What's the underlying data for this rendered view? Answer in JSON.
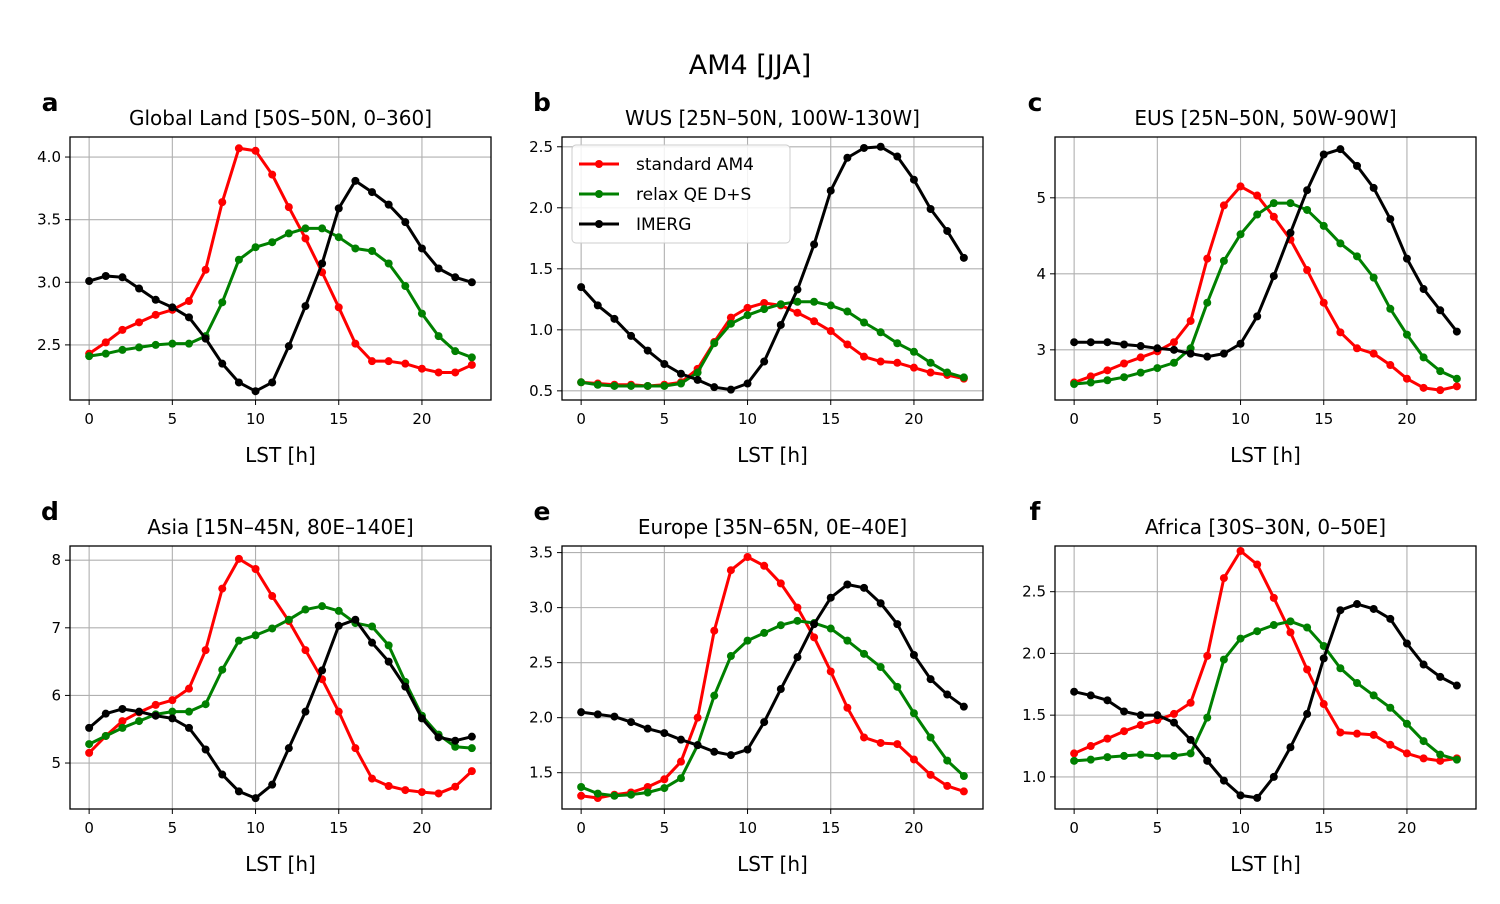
{
  "figure_title": "AM4 [JJA]",
  "colors": {
    "standard AM4": "#ff0000",
    "relax QE D+S": "#008000",
    "IMERG": "#000000"
  },
  "chart_data": [
    {
      "panel": "a",
      "type": "line",
      "title": "Global Land [50S–50N, 0–360]",
      "xlabel": "LST [h]",
      "ylabel": "",
      "grid": true,
      "xlim": [
        -1.15,
        24.15
      ],
      "ylim": [
        2.06,
        4.16
      ],
      "xticks": [
        0,
        5,
        10,
        15,
        20
      ],
      "yticks": [
        "2.5",
        "3.0",
        "3.5",
        "4.0"
      ],
      "x": [
        0,
        1,
        2,
        3,
        4,
        5,
        6,
        7,
        8,
        9,
        10,
        11,
        12,
        13,
        14,
        15,
        16,
        17,
        18,
        19,
        20,
        21,
        22,
        23
      ],
      "series": [
        {
          "name": "standard AM4",
          "values": [
            2.43,
            2.52,
            2.62,
            2.68,
            2.74,
            2.78,
            2.85,
            3.1,
            3.64,
            4.07,
            4.05,
            3.86,
            3.6,
            3.35,
            3.08,
            2.8,
            2.51,
            2.37,
            2.37,
            2.35,
            2.31,
            2.28,
            2.28,
            2.34
          ]
        },
        {
          "name": "relax QE D+S",
          "values": [
            2.41,
            2.43,
            2.46,
            2.48,
            2.5,
            2.51,
            2.51,
            2.57,
            2.84,
            3.18,
            3.28,
            3.32,
            3.39,
            3.43,
            3.43,
            3.36,
            3.27,
            3.25,
            3.15,
            2.97,
            2.75,
            2.57,
            2.45,
            2.4
          ]
        },
        {
          "name": "IMERG",
          "values": [
            3.01,
            3.05,
            3.04,
            2.95,
            2.86,
            2.8,
            2.72,
            2.55,
            2.35,
            2.2,
            2.13,
            2.2,
            2.49,
            2.81,
            3.15,
            3.59,
            3.81,
            3.72,
            3.62,
            3.48,
            3.27,
            3.11,
            3.04,
            3.0
          ]
        }
      ]
    },
    {
      "panel": "b",
      "type": "line",
      "title": "WUS [25N–50N, 100W-130W]",
      "xlabel": "LST [h]",
      "ylabel": "",
      "grid": true,
      "legend": "top-left",
      "xlim": [
        -1.15,
        24.15
      ],
      "ylim": [
        0.425,
        2.58
      ],
      "xticks": [
        0,
        5,
        10,
        15,
        20
      ],
      "yticks": [
        "0.5",
        "1.0",
        "1.5",
        "2.0",
        "2.5"
      ],
      "x": [
        0,
        1,
        2,
        3,
        4,
        5,
        6,
        7,
        8,
        9,
        10,
        11,
        12,
        13,
        14,
        15,
        16,
        17,
        18,
        19,
        20,
        21,
        22,
        23
      ],
      "series": [
        {
          "name": "standard AM4",
          "values": [
            0.57,
            0.56,
            0.55,
            0.55,
            0.54,
            0.55,
            0.57,
            0.68,
            0.9,
            1.1,
            1.18,
            1.22,
            1.2,
            1.14,
            1.07,
            0.99,
            0.88,
            0.78,
            0.74,
            0.73,
            0.69,
            0.65,
            0.63,
            0.6
          ]
        },
        {
          "name": "relax QE D+S",
          "values": [
            0.57,
            0.55,
            0.54,
            0.54,
            0.54,
            0.54,
            0.56,
            0.65,
            0.89,
            1.05,
            1.12,
            1.17,
            1.21,
            1.23,
            1.23,
            1.2,
            1.15,
            1.06,
            0.98,
            0.89,
            0.82,
            0.73,
            0.65,
            0.61
          ]
        },
        {
          "name": "IMERG",
          "values": [
            1.35,
            1.2,
            1.09,
            0.95,
            0.83,
            0.72,
            0.64,
            0.59,
            0.53,
            0.51,
            0.56,
            0.74,
            1.04,
            1.33,
            1.7,
            2.14,
            2.41,
            2.49,
            2.5,
            2.42,
            2.23,
            1.99,
            1.81,
            1.59
          ]
        }
      ]
    },
    {
      "panel": "c",
      "type": "line",
      "title": "EUS [25N–50N, 50W-90W]",
      "xlabel": "LST [h]",
      "ylabel": "",
      "grid": true,
      "xlim": [
        -1.15,
        24.15
      ],
      "ylim": [
        2.34,
        5.8
      ],
      "xticks": [
        0,
        5,
        10,
        15,
        20
      ],
      "yticks": [
        "3",
        "4",
        "5"
      ],
      "x": [
        0,
        1,
        2,
        3,
        4,
        5,
        6,
        7,
        8,
        9,
        10,
        11,
        12,
        13,
        14,
        15,
        16,
        17,
        18,
        19,
        20,
        21,
        22,
        23
      ],
      "series": [
        {
          "name": "standard AM4",
          "values": [
            2.57,
            2.65,
            2.73,
            2.82,
            2.9,
            2.98,
            3.1,
            3.38,
            4.2,
            4.9,
            5.15,
            5.03,
            4.75,
            4.45,
            4.05,
            3.62,
            3.23,
            3.02,
            2.95,
            2.8,
            2.62,
            2.5,
            2.47,
            2.52
          ]
        },
        {
          "name": "relax QE D+S",
          "values": [
            2.55,
            2.57,
            2.6,
            2.64,
            2.7,
            2.76,
            2.83,
            3.02,
            3.62,
            4.17,
            4.52,
            4.78,
            4.93,
            4.93,
            4.84,
            4.63,
            4.4,
            4.23,
            3.95,
            3.54,
            3.2,
            2.9,
            2.72,
            2.62
          ]
        },
        {
          "name": "IMERG",
          "values": [
            3.1,
            3.1,
            3.1,
            3.07,
            3.05,
            3.02,
            3.0,
            2.95,
            2.91,
            2.95,
            3.08,
            3.44,
            3.97,
            4.54,
            5.1,
            5.57,
            5.64,
            5.42,
            5.13,
            4.72,
            4.2,
            3.8,
            3.52,
            3.24
          ]
        }
      ]
    },
    {
      "panel": "d",
      "type": "line",
      "title": "Asia [15N–45N, 80E–140E]",
      "xlabel": "LST [h]",
      "ylabel": "",
      "grid": true,
      "xlim": [
        -1.15,
        24.15
      ],
      "ylim": [
        4.32,
        8.21
      ],
      "xticks": [
        0,
        5,
        10,
        15,
        20
      ],
      "yticks": [
        "5",
        "6",
        "7",
        "8"
      ],
      "x": [
        0,
        1,
        2,
        3,
        4,
        5,
        6,
        7,
        8,
        9,
        10,
        11,
        12,
        13,
        14,
        15,
        16,
        17,
        18,
        19,
        20,
        21,
        22,
        23
      ],
      "series": [
        {
          "name": "standard AM4",
          "values": [
            5.15,
            5.4,
            5.62,
            5.75,
            5.86,
            5.93,
            6.1,
            6.67,
            7.58,
            8.02,
            7.87,
            7.47,
            7.1,
            6.67,
            6.24,
            5.76,
            5.22,
            4.77,
            4.66,
            4.6,
            4.57,
            4.55,
            4.65,
            4.88
          ]
        },
        {
          "name": "relax QE D+S",
          "values": [
            5.28,
            5.4,
            5.52,
            5.62,
            5.72,
            5.76,
            5.76,
            5.87,
            6.38,
            6.81,
            6.89,
            6.99,
            7.12,
            7.27,
            7.32,
            7.25,
            7.07,
            7.02,
            6.74,
            6.2,
            5.7,
            5.42,
            5.24,
            5.22
          ]
        },
        {
          "name": "IMERG",
          "values": [
            5.52,
            5.73,
            5.8,
            5.76,
            5.7,
            5.66,
            5.52,
            5.2,
            4.83,
            4.58,
            4.48,
            4.68,
            5.22,
            5.76,
            6.37,
            7.03,
            7.12,
            6.78,
            6.5,
            6.13,
            5.66,
            5.38,
            5.33,
            5.39
          ]
        }
      ]
    },
    {
      "panel": "e",
      "type": "line",
      "title": "Europe [35N–65N, 0E–40E]",
      "xlabel": "LST [h]",
      "ylabel": "",
      "grid": true,
      "xlim": [
        -1.15,
        24.15
      ],
      "ylim": [
        1.17,
        3.56
      ],
      "xticks": [
        0,
        5,
        10,
        15,
        20
      ],
      "yticks": [
        "1.5",
        "2.0",
        "2.5",
        "3.0",
        "3.5"
      ],
      "x": [
        0,
        1,
        2,
        3,
        4,
        5,
        6,
        7,
        8,
        9,
        10,
        11,
        12,
        13,
        14,
        15,
        16,
        17,
        18,
        19,
        20,
        21,
        22,
        23
      ],
      "series": [
        {
          "name": "standard AM4",
          "values": [
            1.29,
            1.27,
            1.3,
            1.32,
            1.37,
            1.44,
            1.6,
            2.0,
            2.79,
            3.34,
            3.46,
            3.38,
            3.22,
            3.0,
            2.73,
            2.42,
            2.09,
            1.82,
            1.77,
            1.76,
            1.62,
            1.48,
            1.38,
            1.33
          ]
        },
        {
          "name": "relax QE D+S",
          "values": [
            1.37,
            1.31,
            1.29,
            1.3,
            1.32,
            1.36,
            1.45,
            1.75,
            2.2,
            2.56,
            2.7,
            2.77,
            2.84,
            2.88,
            2.86,
            2.81,
            2.7,
            2.58,
            2.46,
            2.28,
            2.04,
            1.82,
            1.61,
            1.47
          ]
        },
        {
          "name": "IMERG",
          "values": [
            2.05,
            2.03,
            2.01,
            1.96,
            1.9,
            1.86,
            1.8,
            1.75,
            1.69,
            1.66,
            1.71,
            1.96,
            2.26,
            2.55,
            2.85,
            3.09,
            3.21,
            3.18,
            3.04,
            2.85,
            2.57,
            2.35,
            2.21,
            2.1
          ]
        }
      ]
    },
    {
      "panel": "f",
      "type": "line",
      "title": "Africa [30S–30N, 0–50E]",
      "xlabel": "LST [h]",
      "ylabel": "",
      "grid": true,
      "xlim": [
        -1.15,
        24.15
      ],
      "ylim": [
        0.74,
        2.87
      ],
      "xticks": [
        0,
        5,
        10,
        15,
        20
      ],
      "yticks": [
        "1.0",
        "1.5",
        "2.0",
        "2.5"
      ],
      "x": [
        0,
        1,
        2,
        3,
        4,
        5,
        6,
        7,
        8,
        9,
        10,
        11,
        12,
        13,
        14,
        15,
        16,
        17,
        18,
        19,
        20,
        21,
        22,
        23
      ],
      "series": [
        {
          "name": "standard AM4",
          "values": [
            1.19,
            1.25,
            1.31,
            1.37,
            1.42,
            1.46,
            1.51,
            1.6,
            1.98,
            2.61,
            2.83,
            2.72,
            2.45,
            2.17,
            1.87,
            1.59,
            1.36,
            1.35,
            1.34,
            1.26,
            1.19,
            1.15,
            1.13,
            1.15
          ]
        },
        {
          "name": "relax QE D+S",
          "values": [
            1.13,
            1.14,
            1.16,
            1.17,
            1.18,
            1.17,
            1.17,
            1.19,
            1.48,
            1.95,
            2.12,
            2.18,
            2.23,
            2.26,
            2.21,
            2.06,
            1.88,
            1.76,
            1.66,
            1.56,
            1.43,
            1.29,
            1.18,
            1.14
          ]
        },
        {
          "name": "IMERG",
          "values": [
            1.69,
            1.66,
            1.62,
            1.53,
            1.5,
            1.5,
            1.44,
            1.3,
            1.13,
            0.97,
            0.85,
            0.83,
            1.0,
            1.24,
            1.51,
            1.96,
            2.35,
            2.4,
            2.36,
            2.28,
            2.08,
            1.91,
            1.81,
            1.74
          ]
        }
      ]
    }
  ]
}
